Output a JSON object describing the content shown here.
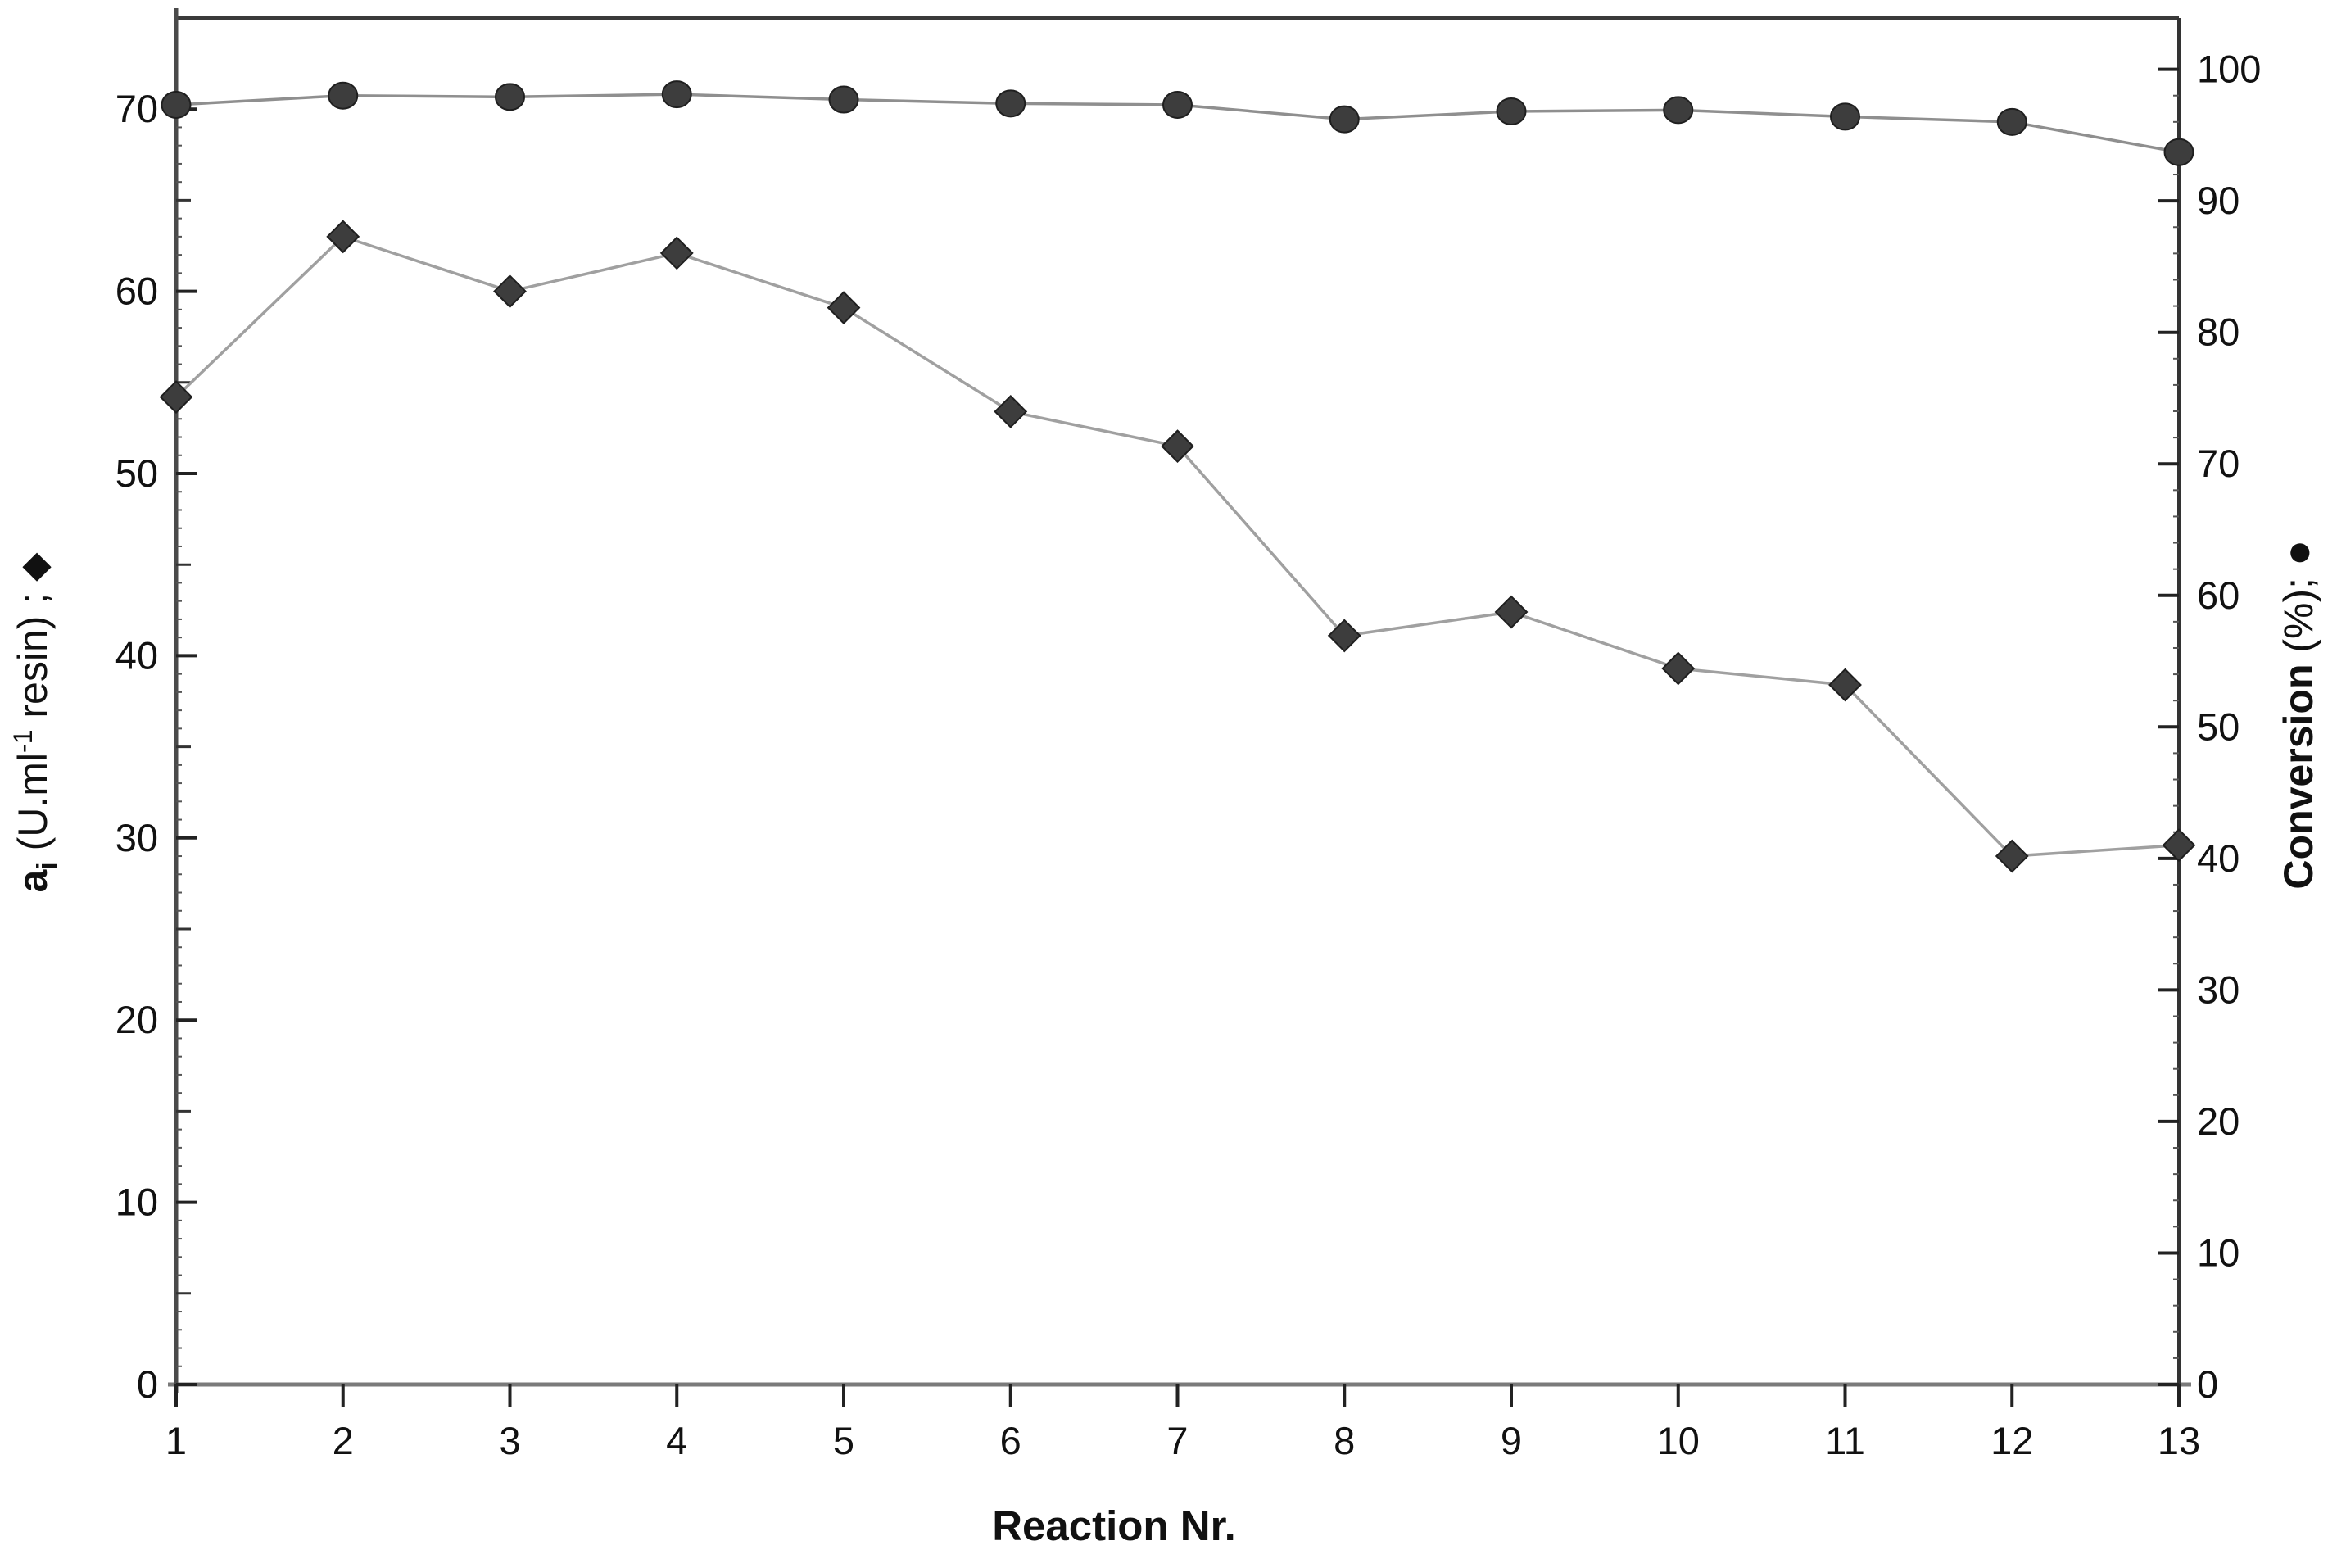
{
  "figure": {
    "background": "#ffffff",
    "text_color": "#111111"
  },
  "chart_data": {
    "type": "line",
    "title": "",
    "x": [
      1,
      2,
      3,
      4,
      5,
      6,
      7,
      8,
      9,
      10,
      11,
      12,
      13
    ],
    "x_axis": {
      "title": "Reaction Nr.",
      "tick_labels": [
        "1",
        "2",
        "3",
        "4",
        "5",
        "6",
        "7",
        "8",
        "9",
        "10",
        "11",
        "12",
        "13"
      ]
    },
    "left_axis": {
      "title_text": "ai (U.ml-1 resin) ; ◆",
      "title_parts": [
        {
          "text": "a",
          "bold": true
        },
        {
          "text": "i",
          "bold": true,
          "script": "sub"
        },
        {
          "text": " (U.ml",
          "bold": false
        },
        {
          "text": "-1",
          "bold": false,
          "script": "super"
        },
        {
          "text": " resin) ; ",
          "bold": false
        },
        {
          "text": "◆",
          "bold": false,
          "glyph": "diamond-icon"
        }
      ],
      "tick_labels": [
        0,
        10,
        20,
        30,
        40,
        50,
        60,
        70
      ],
      "range": [
        0,
        75
      ],
      "minor_step": 5,
      "micro_step": 1
    },
    "right_axis": {
      "title_text": "Conversion (%); ●",
      "title_parts": [
        {
          "text": "Conversion",
          "bold": true
        },
        {
          "text": " (%); ",
          "bold": false
        },
        {
          "text": "●",
          "bold": false,
          "glyph": "circle-icon"
        }
      ],
      "tick_labels": [
        0,
        10,
        20,
        30,
        40,
        50,
        60,
        70,
        80,
        90,
        100
      ],
      "range": [
        0,
        103.9
      ],
      "micro_step": 2
    },
    "series": [
      {
        "name": "ai (U.ml-1 resin)",
        "axis": "left",
        "marker": "diamond",
        "line_color": "#a0a0a0",
        "marker_color": "#3d3d3d",
        "marker_edge": "#1f1f1f",
        "values": [
          54.2,
          63.0,
          60.0,
          62.1,
          59.1,
          53.4,
          51.5,
          41.1,
          42.4,
          39.3,
          38.4,
          29.0,
          29.6
        ]
      },
      {
        "name": "Conversion (%)",
        "axis": "right",
        "marker": "circle",
        "line_color": "#8f8f8f",
        "marker_color": "#3d3d3d",
        "marker_edge": "#1f1f1f",
        "values": [
          97.3,
          98.0,
          97.9,
          98.1,
          97.7,
          97.4,
          97.3,
          96.2,
          96.8,
          96.9,
          96.4,
          96.0,
          93.7
        ]
      }
    ],
    "grid": false,
    "legend_position": "markers-shown-in-axis-titles"
  }
}
